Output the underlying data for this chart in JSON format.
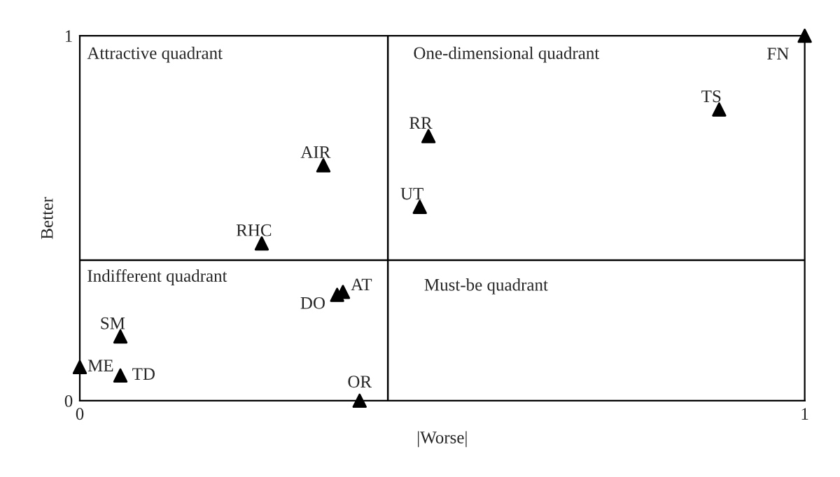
{
  "chart_data": {
    "type": "scatter",
    "xlabel": "|Worse|",
    "ylabel": "Better",
    "x": [
      1,
      0.882,
      0.481,
      0.469,
      0.336,
      0.251,
      0.363,
      0.355,
      0.056,
      0,
      0.056,
      0.386
    ],
    "values": [
      1,
      0.798,
      0.725,
      0.531,
      0.645,
      0.431,
      0.298,
      0.29,
      0.176,
      0.092,
      0.069,
      0
    ],
    "color": "#000000",
    "marker": "triangle",
    "xlim": [
      0,
      1
    ],
    "ylim": [
      0,
      1
    ],
    "xticks": [
      0,
      1
    ],
    "yticks": [
      0,
      1
    ],
    "grid": false,
    "ref_lines": [
      {
        "axis": "x",
        "value": 0.425,
        "color": "#000000"
      },
      {
        "axis": "y",
        "value": 0.385,
        "color": "#000000"
      }
    ],
    "annotations": [
      "Attractive quadrant",
      "One-dimensional quadrant",
      "Indifferent quadrant",
      "Must-be quadrant",
      {
        "text": "FN",
        "x": 1,
        "y": 1
      },
      {
        "text": "TS",
        "x": 0.882,
        "y": 0.798
      },
      {
        "text": "RR",
        "x": 0.481,
        "y": 0.725
      },
      {
        "text": "UT",
        "x": 0.469,
        "y": 0.531
      },
      {
        "text": "AIR",
        "x": 0.336,
        "y": 0.645
      },
      {
        "text": "RHC",
        "x": 0.251,
        "y": 0.431
      },
      {
        "text": "AT",
        "x": 0.363,
        "y": 0.298
      },
      {
        "text": "DO",
        "x": 0.355,
        "y": 0.29
      },
      {
        "text": "SM",
        "x": 0.056,
        "y": 0.176
      },
      {
        "text": "ME",
        "x": 0,
        "y": 0.092
      },
      {
        "text": "TD",
        "x": 0.056,
        "y": 0.069
      },
      {
        "text": "OR",
        "x": 0.386,
        "y": 0
      }
    ]
  }
}
